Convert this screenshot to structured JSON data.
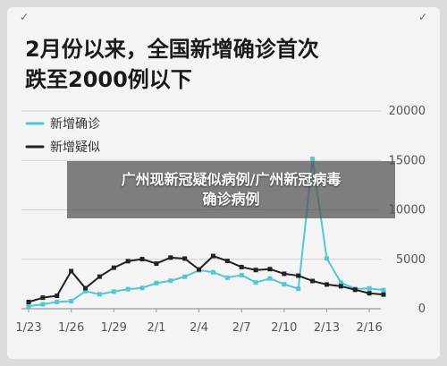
{
  "title": {
    "line1": "2月份以来，全国新增确诊首次",
    "line2": "跌至2000例以下"
  },
  "overlay": {
    "line1": "广州现新冠疑似病例/广州新冠病毒",
    "line2": "确诊病例"
  },
  "icons": {
    "left": "checkbox-icon",
    "right": "checkbox-icon"
  },
  "chart_data": {
    "type": "line",
    "categories": [
      "1/23",
      "1/24",
      "1/25",
      "1/26",
      "1/27",
      "1/28",
      "1/29",
      "1/30",
      "1/31",
      "2/1",
      "2/2",
      "2/3",
      "2/4",
      "2/5",
      "2/6",
      "2/7",
      "2/8",
      "2/9",
      "2/10",
      "2/11",
      "2/12",
      "2/13",
      "2/14",
      "2/15",
      "2/16",
      "2/17"
    ],
    "x_tick_labels": [
      "1/23",
      "1/26",
      "1/29",
      "2/1",
      "2/4",
      "2/7",
      "2/10",
      "2/13",
      "2/16"
    ],
    "y_tick_labels": [
      "0",
      "5000",
      "10000",
      "15000",
      "20000"
    ],
    "ylim": [
      0,
      20000
    ],
    "legend_position": "top-left",
    "grid": true,
    "series": [
      {
        "name": "新增确诊",
        "color": "#4ec9d8",
        "values": [
          259,
          444,
          688,
          769,
          1771,
          1459,
          1737,
          1982,
          2102,
          2590,
          2829,
          3235,
          3887,
          3694,
          3143,
          3399,
          2656,
          3062,
          2478,
          2015,
          15152,
          5090,
          2641,
          2009,
          2048,
          1886
        ]
      },
      {
        "name": "新增疑似",
        "color": "#222222",
        "values": [
          680,
          1118,
          1309,
          3806,
          2077,
          3248,
          4148,
          4812,
          5019,
          4562,
          5173,
          5072,
          3971,
          5328,
          4833,
          4214,
          3916,
          4008,
          3536,
          3342,
          2807,
          2450,
          2277,
          1918,
          1563,
          1432
        ]
      }
    ]
  }
}
